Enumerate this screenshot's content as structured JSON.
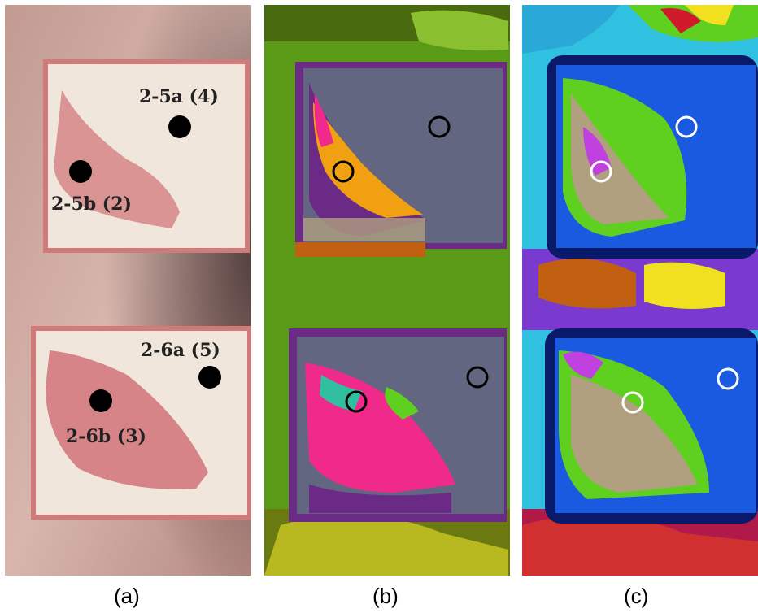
{
  "captions": {
    "a": "(a)",
    "b": "(b)",
    "c": "(c)"
  },
  "labels": {
    "site_2_5a": "2-5a (4)",
    "site_2_5b": "2-5b (2)",
    "site_2_6a": "2-6a (5)",
    "site_2_6b": "2-6b (3)"
  },
  "colors": {
    "skin": "#d9b2a6",
    "patch": "#efe6dc",
    "redness": "#c8505a",
    "seg_background": "#5a9a16",
    "seg_patch": "#626680",
    "seg_border": "#6a2a86",
    "seg_inflamed_top": "#f0a010",
    "seg_inflamed_bottom": "#f02a8a",
    "seg_c_border": "#0a1a6a",
    "seg_c_patch": "#1a5ae0",
    "seg_c_green": "#60d020",
    "seg_c_tan": "#b0a080"
  }
}
